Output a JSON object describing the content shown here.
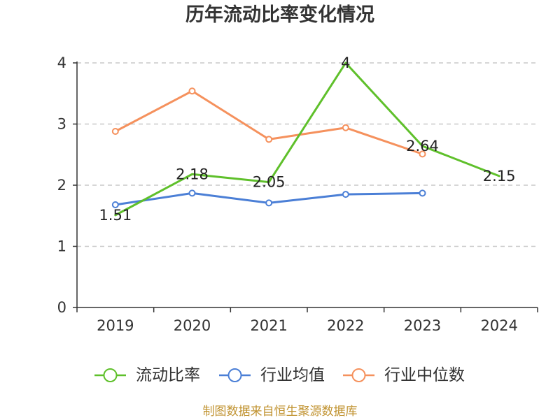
{
  "chart_data": {
    "type": "line",
    "title": "历年流动比率变化情况",
    "xlabel": "",
    "ylabel": "",
    "categories": [
      "2019",
      "2020",
      "2021",
      "2022",
      "2023",
      "2024"
    ],
    "ylim": [
      0,
      4
    ],
    "yticks": [
      0,
      1,
      2,
      3,
      4
    ],
    "grid": true,
    "legend_position": "bottom",
    "series": [
      {
        "name": "流动比率",
        "color": "#5fc02b",
        "values": [
          1.51,
          2.18,
          2.05,
          4,
          2.64,
          2.15
        ],
        "show_labels": true,
        "show_markers": false
      },
      {
        "name": "行业均值",
        "color": "#4b7fd6",
        "values": [
          1.68,
          1.87,
          1.71,
          1.85,
          1.87,
          null
        ],
        "show_labels": false,
        "show_markers": true
      },
      {
        "name": "行业中位数",
        "color": "#f5915d",
        "values": [
          2.88,
          3.54,
          2.75,
          2.94,
          2.51,
          null
        ],
        "show_labels": false,
        "show_markers": true
      }
    ]
  },
  "footer": {
    "text": "制图数据来自恒生聚源数据库",
    "color": "#c0922f"
  }
}
